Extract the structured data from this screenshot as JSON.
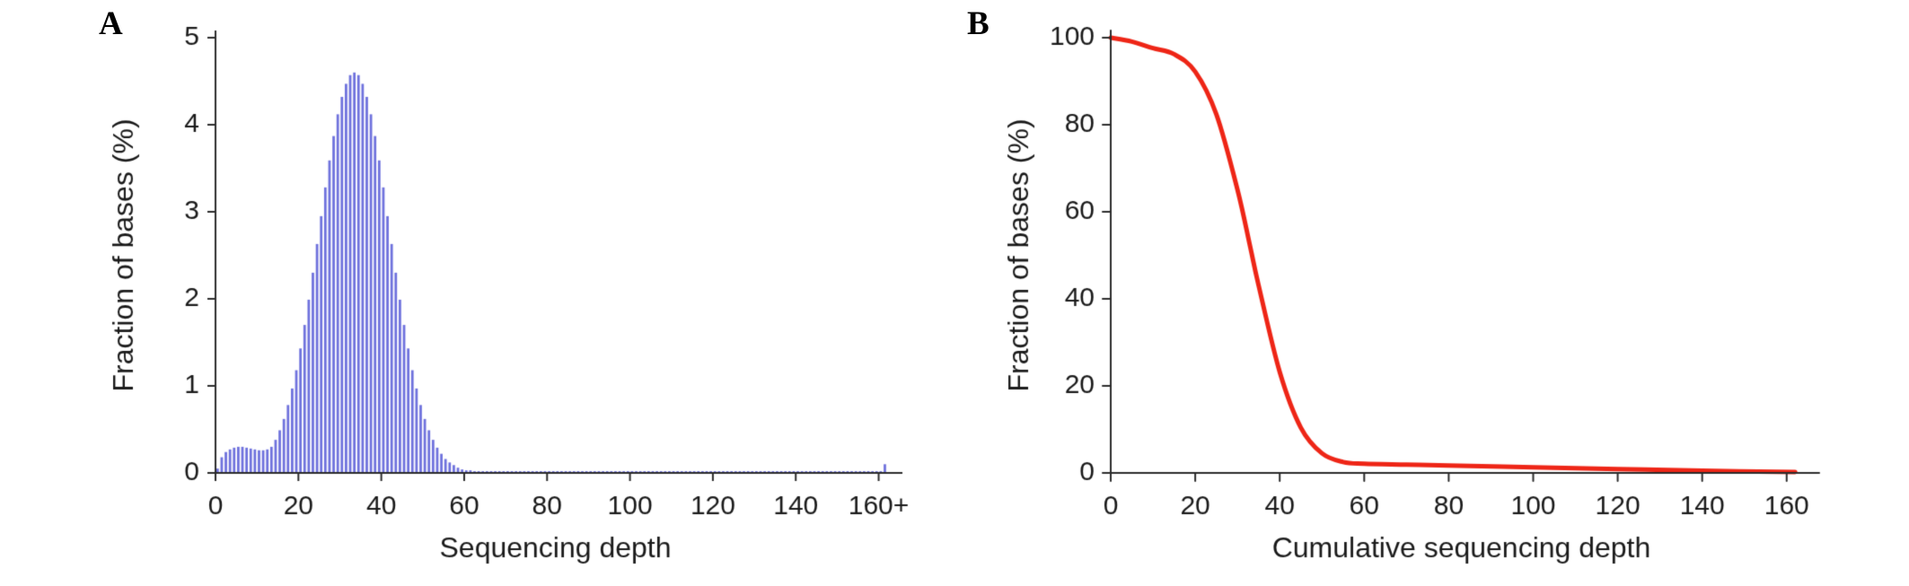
{
  "page": {
    "background": "#ffffff",
    "axis_color": "#2b2b2b",
    "text_color": "#1a1a1a"
  },
  "panels": [
    {
      "label": "A",
      "chart_data": {
        "type": "bar",
        "title": "",
        "xlabel": "Sequencing depth",
        "ylabel": "Fraction of bases (%)",
        "bar_color": "#6f72dd",
        "grid": false,
        "legend": false,
        "xlim": [
          0,
          164
        ],
        "ylim": [
          0,
          5
        ],
        "x_ticks": [
          0,
          20,
          40,
          60,
          80,
          100,
          120,
          140,
          160
        ],
        "x_tick_labels": [
          "0",
          "20",
          "40",
          "60",
          "80",
          "100",
          "120",
          "140",
          "160+"
        ],
        "y_ticks": [
          0,
          1,
          2,
          3,
          4,
          5
        ],
        "x_start": 0,
        "bin_width": 1,
        "values": [
          0.05,
          0.18,
          0.24,
          0.27,
          0.29,
          0.3,
          0.3,
          0.29,
          0.28,
          0.27,
          0.26,
          0.26,
          0.27,
          0.3,
          0.38,
          0.49,
          0.62,
          0.78,
          0.97,
          1.18,
          1.43,
          1.7,
          1.99,
          2.3,
          2.63,
          2.95,
          3.28,
          3.59,
          3.87,
          4.12,
          4.32,
          4.47,
          4.57,
          4.6,
          4.57,
          4.47,
          4.32,
          4.12,
          3.87,
          3.59,
          3.28,
          2.95,
          2.63,
          2.3,
          1.99,
          1.7,
          1.43,
          1.18,
          0.97,
          0.78,
          0.62,
          0.49,
          0.38,
          0.29,
          0.22,
          0.16,
          0.12,
          0.09,
          0.06,
          0.04,
          0.03,
          0.03,
          0.02,
          0.02,
          0.02,
          0.02,
          0.02,
          0.02,
          0.02,
          0.02,
          0.02,
          0.02,
          0.02,
          0.02,
          0.02,
          0.02,
          0.02,
          0.02,
          0.02,
          0.02,
          0.02,
          0.02,
          0.02,
          0.02,
          0.02,
          0.02,
          0.02,
          0.02,
          0.02,
          0.02,
          0.02,
          0.02,
          0.02,
          0.02,
          0.02,
          0.02,
          0.02,
          0.02,
          0.02,
          0.02,
          0.02,
          0.02,
          0.02,
          0.02,
          0.02,
          0.02,
          0.02,
          0.02,
          0.02,
          0.02,
          0.02,
          0.02,
          0.02,
          0.02,
          0.02,
          0.02,
          0.02,
          0.02,
          0.02,
          0.02,
          0.02,
          0.02,
          0.02,
          0.02,
          0.02,
          0.02,
          0.02,
          0.02,
          0.02,
          0.02,
          0.02,
          0.02,
          0.02,
          0.02,
          0.02,
          0.02,
          0.02,
          0.02,
          0.02,
          0.02,
          0.02,
          0.02,
          0.02,
          0.02,
          0.02,
          0.02,
          0.02,
          0.02,
          0.02,
          0.02,
          0.02,
          0.02,
          0.02,
          0.02,
          0.02,
          0.02,
          0.02,
          0.02,
          0.02,
          0.02,
          0.02,
          0.1
        ]
      }
    },
    {
      "label": "B",
      "chart_data": {
        "type": "line",
        "title": "",
        "xlabel": "Cumulative sequencing depth",
        "ylabel": "Fraction of bases (%)",
        "line_color": "#ee2516",
        "grid": false,
        "legend": false,
        "xlim": [
          0,
          166
        ],
        "ylim": [
          0,
          100
        ],
        "x_ticks": [
          0,
          20,
          40,
          60,
          80,
          100,
          120,
          140,
          160
        ],
        "x_tick_labels": [
          "0",
          "20",
          "40",
          "60",
          "80",
          "100",
          "120",
          "140",
          "160"
        ],
        "y_ticks": [
          0,
          20,
          40,
          60,
          80,
          100
        ],
        "x": [
          0,
          5,
          10,
          15,
          20,
          25,
          30,
          33,
          35,
          40,
          45,
          50,
          55,
          60,
          70,
          80,
          100,
          120,
          140,
          162
        ],
        "y": [
          100,
          99.1,
          97.6,
          96.2,
          92.2,
          82.4,
          65.1,
          52.0,
          43.1,
          23.2,
          10.4,
          4.5,
          2.5,
          2.1,
          1.9,
          1.7,
          1.3,
          0.9,
          0.5,
          0.2
        ]
      }
    }
  ]
}
